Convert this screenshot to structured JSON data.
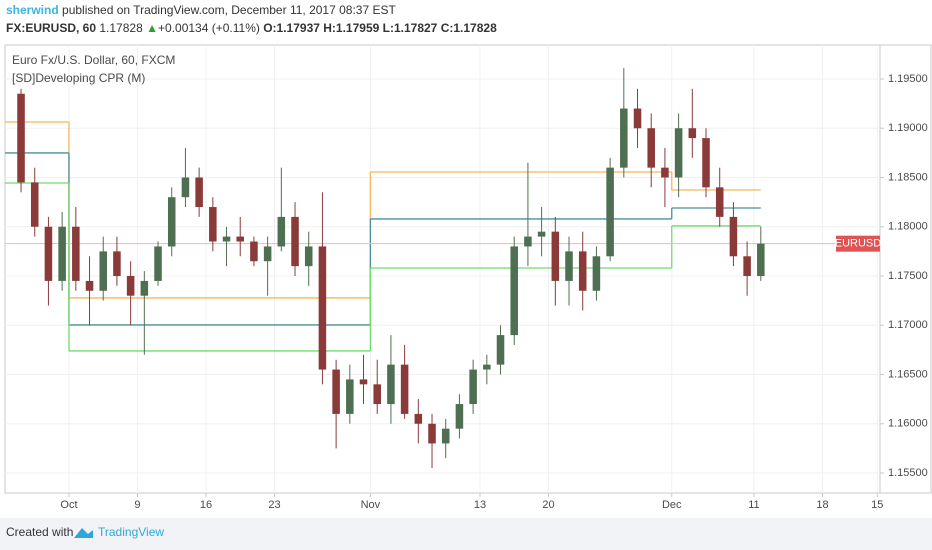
{
  "header": {
    "author": "sherwind",
    "published": "published on TradingView.com, December 11, 2017 08:37 EST",
    "symbol": "FX:EURUSD, 60",
    "last": "1.17828",
    "change": "+0.00134 (+0.11%)",
    "open": "O:1.17937",
    "high": "H:1.17959",
    "low": "L:1.17827",
    "close": "C:1.17828"
  },
  "footer": {
    "created": "Created with",
    "brand": "TradingView"
  },
  "chart_data": {
    "type": "candlestick",
    "title": "Euro Fx/U.S. Dollar, 60, FXCM",
    "subtitle": "[SD]Developing CPR (M)",
    "x": [
      -4,
      -3,
      -2,
      -1,
      0,
      1,
      2,
      3,
      4,
      5,
      6,
      7,
      8,
      9,
      10,
      11,
      12,
      13,
      14,
      15,
      16,
      17,
      18,
      19,
      20,
      21,
      22,
      23,
      24,
      25,
      26,
      27,
      28,
      29,
      30,
      31,
      32,
      33,
      34,
      35,
      36,
      37,
      38,
      39,
      40,
      41,
      42,
      43,
      44,
      45,
      46,
      47,
      48,
      49,
      50
    ],
    "open": [
      1.1935,
      1.1845,
      1.18,
      1.1745,
      1.18,
      1.1745,
      1.1735,
      1.1775,
      1.175,
      1.173,
      1.1745,
      1.178,
      1.183,
      1.185,
      1.182,
      1.1785,
      1.179,
      1.1785,
      1.1765,
      1.178,
      1.181,
      1.176,
      1.178,
      1.1655,
      1.161,
      1.1645,
      1.164,
      1.162,
      1.166,
      1.161,
      1.16,
      1.158,
      1.1595,
      1.162,
      1.1655,
      1.166,
      1.169,
      1.178,
      1.179,
      1.1795,
      1.1745,
      1.1775,
      1.1735,
      1.177,
      1.186,
      1.192,
      1.19,
      1.186,
      1.185,
      1.19,
      1.189,
      1.184,
      1.181,
      1.177,
      1.175
    ],
    "high": [
      1.194,
      1.186,
      1.181,
      1.1815,
      1.182,
      1.177,
      1.179,
      1.179,
      1.1765,
      1.1755,
      1.1785,
      1.184,
      1.188,
      1.186,
      1.183,
      1.18,
      1.181,
      1.179,
      1.179,
      1.186,
      1.1825,
      1.1795,
      1.1835,
      1.1665,
      1.166,
      1.167,
      1.1665,
      1.169,
      1.168,
      1.1625,
      1.161,
      1.1605,
      1.163,
      1.1665,
      1.167,
      1.17,
      1.179,
      1.1865,
      1.182,
      1.181,
      1.179,
      1.1795,
      1.178,
      1.187,
      1.1961,
      1.194,
      1.1915,
      1.188,
      1.1915,
      1.194,
      1.19,
      1.186,
      1.1825,
      1.1785,
      1.18
    ],
    "low": [
      1.1835,
      1.179,
      1.172,
      1.1735,
      1.1735,
      1.17,
      1.1725,
      1.174,
      1.17,
      1.167,
      1.174,
      1.177,
      1.182,
      1.181,
      1.1775,
      1.176,
      1.177,
      1.176,
      1.173,
      1.1775,
      1.175,
      1.174,
      1.164,
      1.1575,
      1.16,
      1.162,
      1.161,
      1.16,
      1.1605,
      1.158,
      1.1555,
      1.1565,
      1.1585,
      1.161,
      1.164,
      1.165,
      1.168,
      1.176,
      1.177,
      1.172,
      1.172,
      1.1715,
      1.1725,
      1.1765,
      1.185,
      1.188,
      1.184,
      1.182,
      1.183,
      1.187,
      1.183,
      1.18,
      1.176,
      1.173,
      1.1745
    ],
    "close": [
      1.1845,
      1.18,
      1.1745,
      1.18,
      1.1745,
      1.1735,
      1.1775,
      1.175,
      1.173,
      1.1745,
      1.178,
      1.183,
      1.185,
      1.182,
      1.1785,
      1.179,
      1.1785,
      1.1765,
      1.178,
      1.181,
      1.176,
      1.178,
      1.1655,
      1.161,
      1.1645,
      1.164,
      1.162,
      1.166,
      1.161,
      1.16,
      1.158,
      1.1595,
      1.162,
      1.1655,
      1.166,
      1.169,
      1.178,
      1.179,
      1.1795,
      1.1745,
      1.1775,
      1.1735,
      1.177,
      1.186,
      1.192,
      1.19,
      1.186,
      1.185,
      1.19,
      1.189,
      1.184,
      1.181,
      1.177,
      1.175,
      1.17828
    ],
    "up_color": "#4f6f52",
    "down_color": "#8b3a3a",
    "cpr": {
      "x": [
        -5,
        0,
        22,
        44
      ],
      "series": [
        {
          "color": "#f5b75a",
          "values": [
            1.19063,
            1.17277,
            1.18556,
            1.18373
          ]
        },
        {
          "color": "#4a8f9a",
          "values": [
            1.18749,
            1.17003,
            1.18079,
            1.1819
          ]
        },
        {
          "color": "#6fdc6f",
          "values": [
            1.18444,
            1.16739,
            1.17581,
            1.18008
          ]
        }
      ]
    },
    "price_line": {
      "label": "EURUSD",
      "value": 1.17828,
      "color": "#e05353"
    },
    "xlim": [
      -4.67,
      59.2
    ],
    "ylim": [
      1.15297,
      1.19845
    ],
    "xticks": [
      {
        "value": 0,
        "label": "Oct"
      },
      {
        "value": 5,
        "label": "9"
      },
      {
        "value": 10,
        "label": "16"
      },
      {
        "value": 15,
        "label": "23"
      },
      {
        "value": 22,
        "label": "Nov"
      },
      {
        "value": 30,
        "label": "13"
      },
      {
        "value": 35,
        "label": "20"
      },
      {
        "value": 44,
        "label": "Dec"
      },
      {
        "value": 50,
        "label": "11"
      },
      {
        "value": 55,
        "label": "18"
      },
      {
        "value": 59,
        "label": "15"
      }
    ],
    "yticks": [
      {
        "value": 1.155,
        "label": "1.15500"
      },
      {
        "value": 1.16,
        "label": "1.16000"
      },
      {
        "value": 1.165,
        "label": "1.16500"
      },
      {
        "value": 1.17,
        "label": "1.17000"
      },
      {
        "value": 1.175,
        "label": "1.17500"
      },
      {
        "value": 1.18,
        "label": "1.18000"
      },
      {
        "value": 1.185,
        "label": "1.18500"
      },
      {
        "value": 1.19,
        "label": "1.19000"
      },
      {
        "value": 1.195,
        "label": "1.19500"
      }
    ],
    "grid": true
  }
}
